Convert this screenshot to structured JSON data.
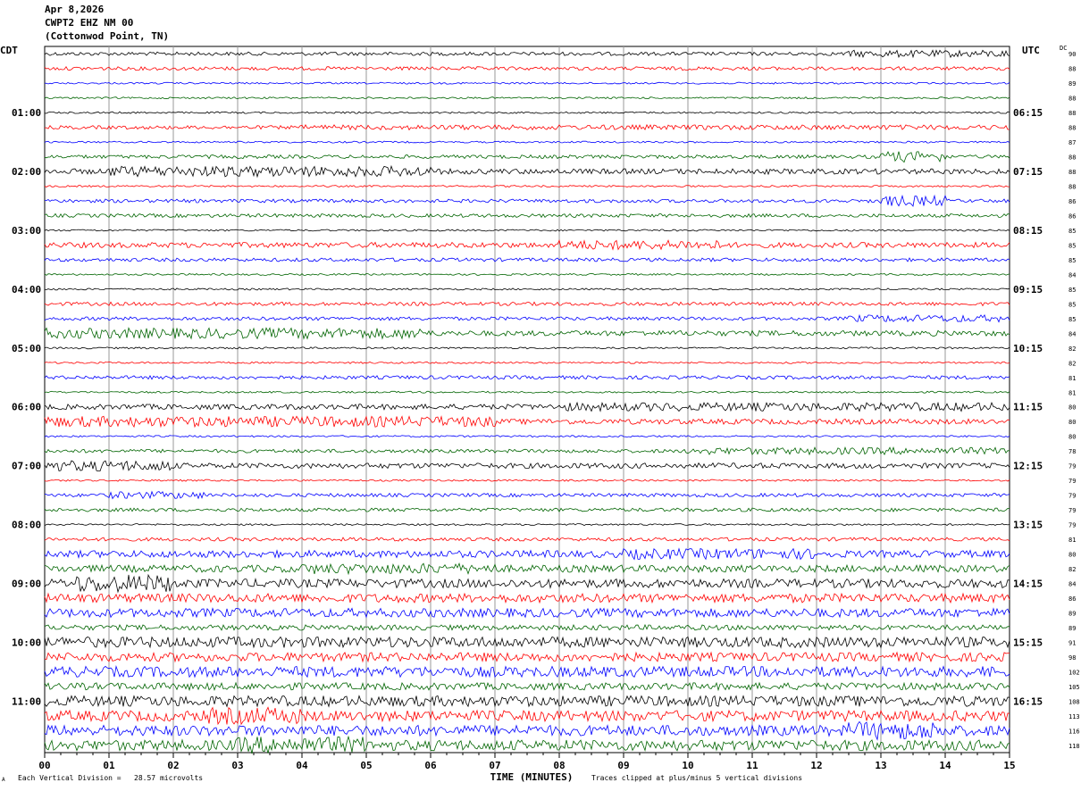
{
  "header": {
    "date": "Apr 8,2026",
    "station": "CWPT2 EHZ NM 00",
    "location": "(Cottonwod Point, TN)"
  },
  "left_tz": "CDT",
  "right_tz": "UTC",
  "dc_header": "DC",
  "footer": {
    "scale_note": "Each Vertical Division =   28.57 microvolts",
    "clip_note": "Traces clipped at plus/minus 5 vertical divisions",
    "corner_mark": "A"
  },
  "colors": {
    "trace_cycle": [
      "#000000",
      "#ff0000",
      "#0000ff",
      "#006400"
    ],
    "grid": "#9a9a9a"
  },
  "chart_data": {
    "type": "line",
    "title": "",
    "xlabel": "TIME (MINUTES)",
    "xlim": [
      0,
      15
    ],
    "x_ticks": [
      "00",
      "01",
      "02",
      "03",
      "04",
      "05",
      "06",
      "07",
      "08",
      "09",
      "10",
      "11",
      "12",
      "13",
      "14",
      "15"
    ],
    "rows": 48,
    "left_hour_labels": [
      "01:00",
      "02:00",
      "03:00",
      "04:00",
      "05:00",
      "06:00",
      "07:00",
      "08:00",
      "09:00",
      "10:00",
      "11:00"
    ],
    "right_hour_labels": [
      "06:15",
      "07:15",
      "08:15",
      "09:15",
      "10:15",
      "11:15",
      "12:15",
      "13:15",
      "14:15",
      "15:15",
      "16:15"
    ],
    "dc_values": [
      "90",
      "88",
      "89",
      "88",
      "88",
      "88",
      "87",
      "88",
      "88",
      "88",
      "86",
      "86",
      "85",
      "85",
      "85",
      "84",
      "85",
      "85",
      "85",
      "84",
      "82",
      "82",
      "81",
      "81",
      "80",
      "80",
      "80",
      "78",
      "79",
      "79",
      "79",
      "79",
      "79",
      "81",
      "80",
      "82",
      "84",
      "86",
      "89",
      "89",
      "91",
      "98",
      "102",
      "105",
      "108",
      "113",
      "116",
      "118"
    ],
    "amplitude": [
      2,
      2,
      1,
      1,
      1,
      2,
      1,
      2,
      3,
      1,
      2,
      2,
      1,
      3,
      2,
      1,
      1,
      2,
      2,
      3,
      1,
      1,
      2,
      1,
      3,
      3,
      1,
      2,
      3,
      1,
      2,
      2,
      1,
      2,
      4,
      4,
      5,
      5,
      5,
      3,
      6,
      5,
      6,
      4,
      6,
      6,
      6,
      6
    ],
    "events": [
      {
        "row": 0,
        "from": 12.5,
        "to": 15,
        "gain": 2
      },
      {
        "row": 5,
        "from": 4,
        "to": 15,
        "gain": 1.4
      },
      {
        "row": 7,
        "from": 13,
        "to": 14,
        "gain": 3
      },
      {
        "row": 8,
        "from": 1,
        "to": 6,
        "gain": 2
      },
      {
        "row": 10,
        "from": 13,
        "to": 14,
        "gain": 3
      },
      {
        "row": 13,
        "from": 8,
        "to": 10.5,
        "gain": 1.8
      },
      {
        "row": 18,
        "from": 12.5,
        "to": 15,
        "gain": 2
      },
      {
        "row": 19,
        "from": 0,
        "to": 6,
        "gain": 2
      },
      {
        "row": 24,
        "from": 8,
        "to": 15,
        "gain": 1.6
      },
      {
        "row": 25,
        "from": 0,
        "to": 7,
        "gain": 2
      },
      {
        "row": 27,
        "from": 10,
        "to": 15,
        "gain": 2
      },
      {
        "row": 28,
        "from": 0,
        "to": 2,
        "gain": 2
      },
      {
        "row": 30,
        "from": 1,
        "to": 2.5,
        "gain": 2
      },
      {
        "row": 34,
        "from": 9,
        "to": 12,
        "gain": 1.5
      },
      {
        "row": 35,
        "from": 4,
        "to": 7,
        "gain": 1.5
      },
      {
        "row": 36,
        "from": 0.5,
        "to": 2,
        "gain": 2
      },
      {
        "row": 45,
        "from": 2.5,
        "to": 4,
        "gain": 1.6
      },
      {
        "row": 46,
        "from": 12.5,
        "to": 14,
        "gain": 1.7
      },
      {
        "row": 47,
        "from": 3,
        "to": 5,
        "gain": 1.6
      }
    ]
  }
}
